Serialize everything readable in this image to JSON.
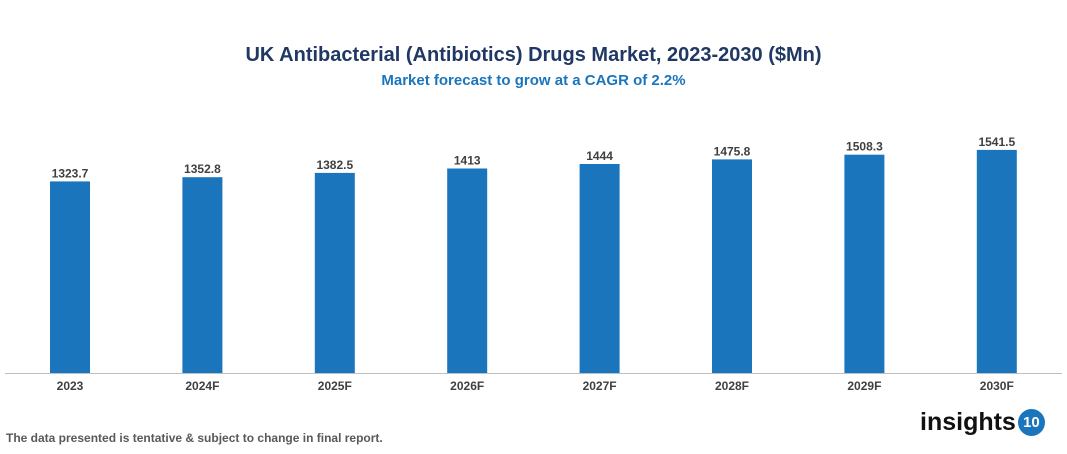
{
  "chart_data": {
    "type": "bar",
    "title": "UK Antibacterial (Antibiotics) Drugs Market, 2023-2030 ($Mn)",
    "subtitle": "Market forecast to grow at a CAGR of 2.2%",
    "categories": [
      "2023",
      "2024F",
      "2025F",
      "2026F",
      "2027F",
      "2028F",
      "2029F",
      "2030F"
    ],
    "values": [
      1323.7,
      1352.8,
      1382.5,
      1413,
      1444,
      1475.8,
      1508.3,
      1541.5
    ],
    "data_labels": [
      "1323.7",
      "1352.8",
      "1382.5",
      "1413",
      "1444",
      "1475.8",
      "1508.3",
      "1541.5"
    ],
    "xlabel": "",
    "ylabel": "",
    "ylim": [
      0,
      1900
    ],
    "grid": false,
    "legend": "none",
    "bar_color": "#1a75bc"
  },
  "footer": {
    "note": "The data presented is tentative & subject to change in final report.",
    "logo_text": "insights",
    "logo_badge": "10"
  }
}
